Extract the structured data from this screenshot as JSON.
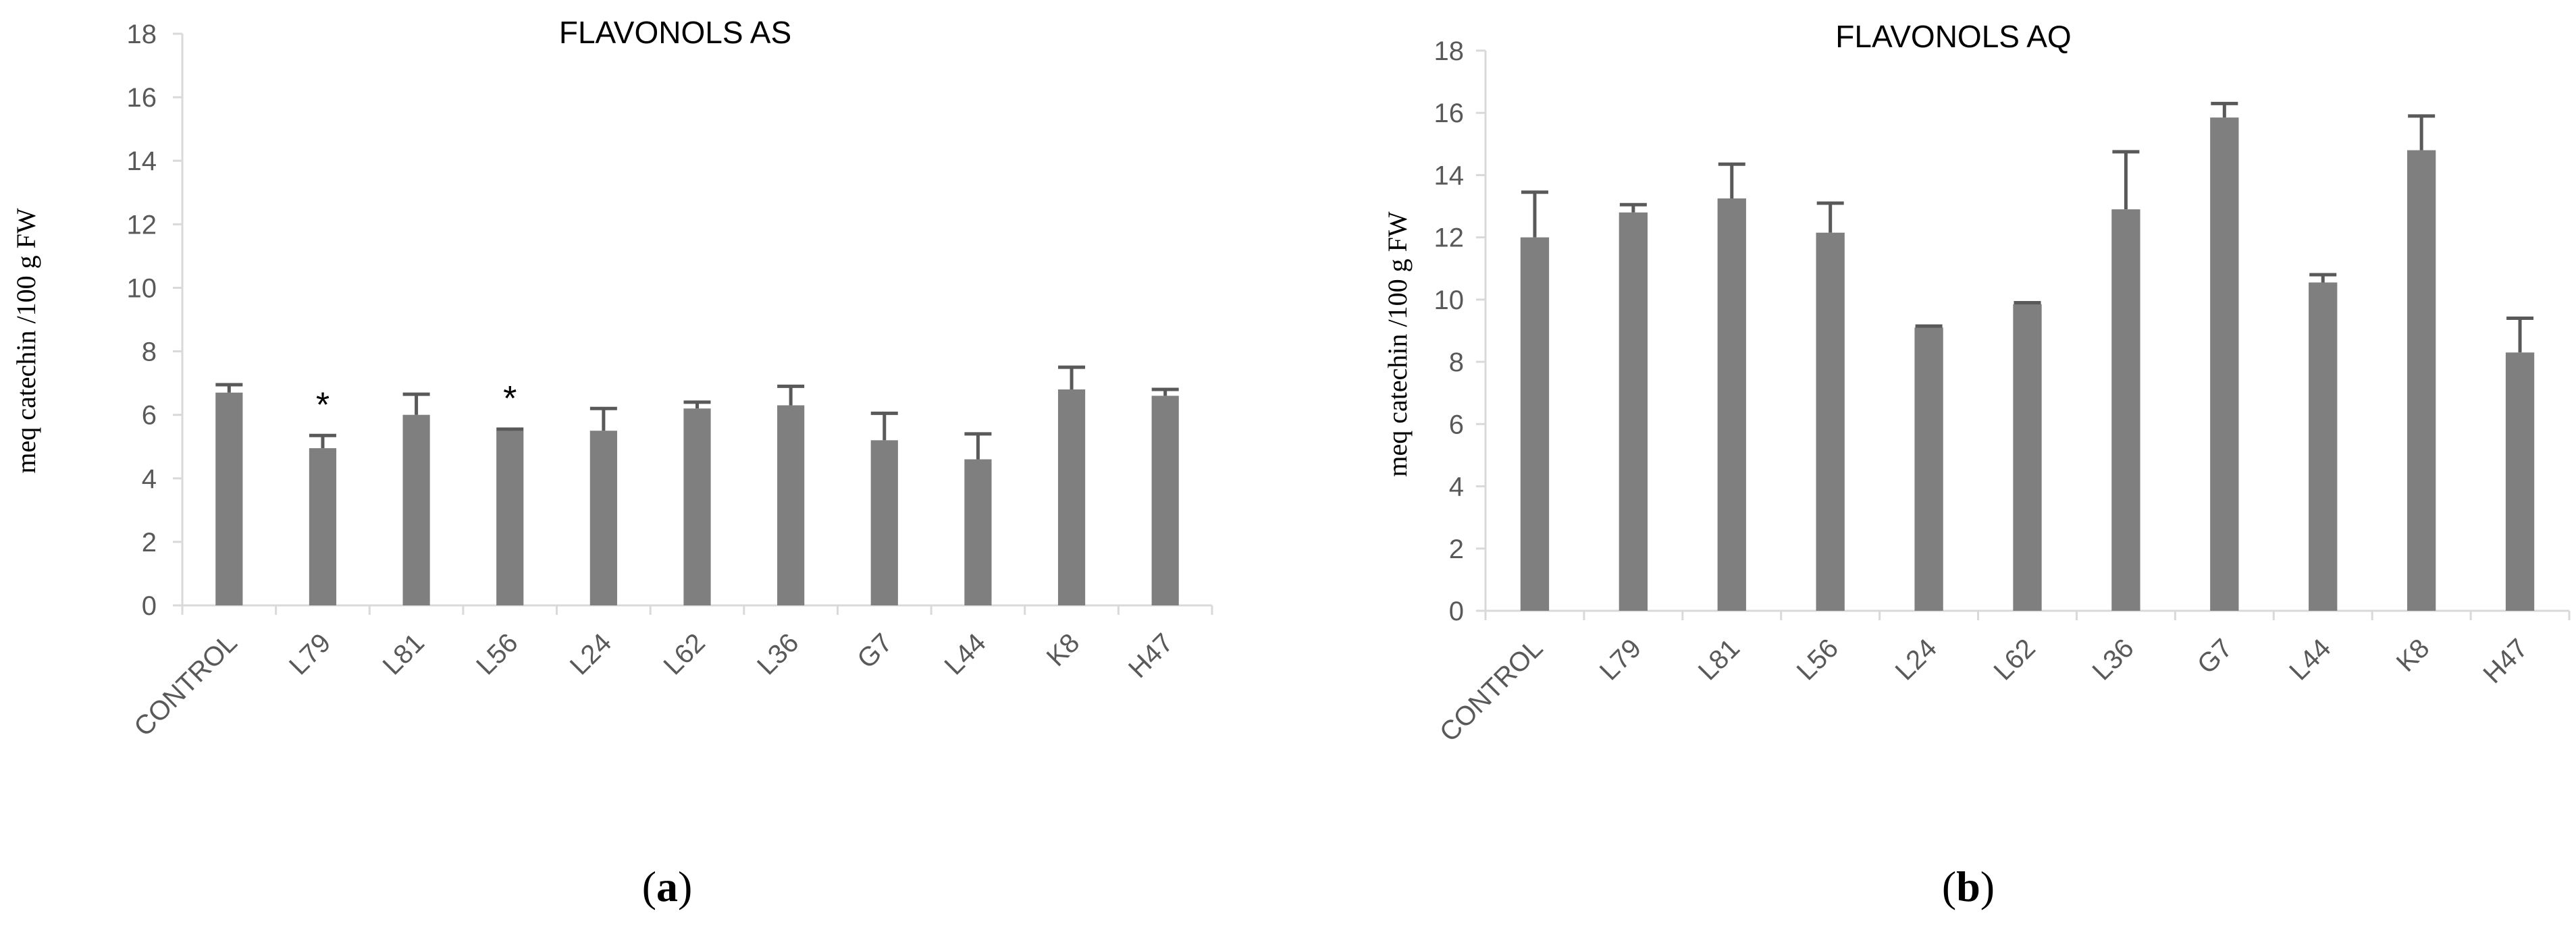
{
  "chart_data": [
    {
      "type": "bar",
      "title": "FLAVONOLS AS",
      "ylabel": "meq catechin /100 g FW",
      "xlabel": "",
      "ylim": [
        0,
        18
      ],
      "yticks": [
        "0",
        "2",
        "4",
        "6",
        "8",
        "10",
        "12",
        "14",
        "16",
        "18"
      ],
      "categories": [
        "CONTROL",
        "L79",
        "L81",
        "L56",
        "L24",
        "L62",
        "L36",
        "G7",
        "L44",
        "K8",
        "H47"
      ],
      "values": [
        6.7,
        4.95,
        6.0,
        5.5,
        5.5,
        6.2,
        6.3,
        5.2,
        4.6,
        6.8,
        6.6
      ],
      "errors": [
        0.25,
        0.4,
        0.65,
        0.05,
        0.7,
        0.2,
        0.6,
        0.85,
        0.8,
        0.7,
        0.2
      ],
      "annotations": [
        "",
        "*",
        "",
        "*",
        "",
        "",
        "",
        "",
        "",
        "",
        ""
      ],
      "bar_color": "#7f7f7f",
      "grid": false,
      "panel_label": {
        "open": "(",
        "letter": "a",
        "close": ")"
      }
    },
    {
      "type": "bar",
      "title": "FLAVONOLS AQ",
      "ylabel": "meq catechin /100 g FW",
      "xlabel": "",
      "ylim": [
        0,
        18
      ],
      "yticks": [
        "0",
        "2",
        "4",
        "6",
        "8",
        "10",
        "12",
        "14",
        "16",
        "18"
      ],
      "categories": [
        "CONTROL",
        "L79",
        "L81",
        "L56",
        "L24",
        "L62",
        "L36",
        "G7",
        "L44",
        "K8",
        "H47"
      ],
      "values": [
        12.0,
        12.8,
        13.25,
        12.15,
        9.1,
        9.85,
        12.9,
        15.85,
        10.55,
        14.8,
        8.3
      ],
      "errors": [
        1.45,
        0.25,
        1.1,
        0.95,
        0.05,
        0.05,
        1.85,
        0.45,
        0.25,
        1.1,
        1.1
      ],
      "annotations": [
        "",
        "",
        "",
        "",
        "",
        "",
        "",
        "",
        "",
        "",
        ""
      ],
      "bar_color": "#7f7f7f",
      "grid": false,
      "panel_label": {
        "open": "(",
        "letter": "b",
        "close": ")"
      }
    }
  ]
}
